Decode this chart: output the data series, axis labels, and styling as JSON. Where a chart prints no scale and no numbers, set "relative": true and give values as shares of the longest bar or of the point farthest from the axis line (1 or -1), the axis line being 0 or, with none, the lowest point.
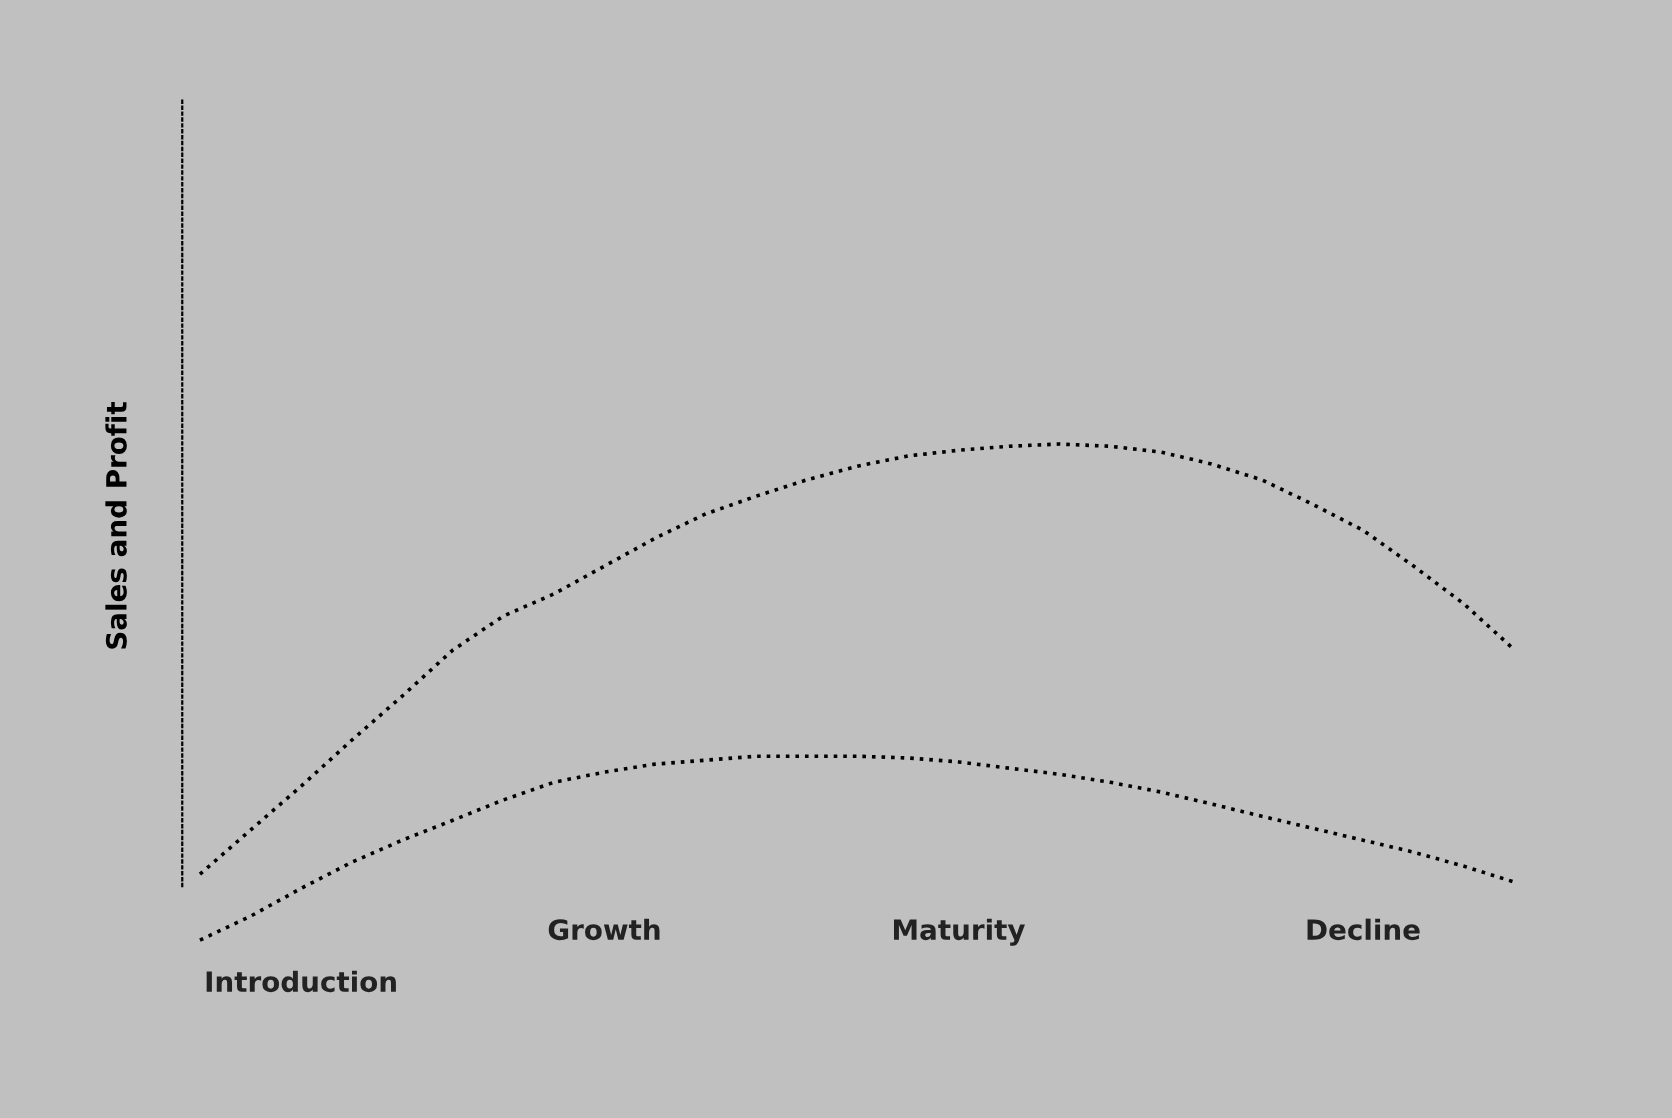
{
  "chart_data": {
    "type": "line",
    "relative": true,
    "ylabel": "Sales and Profit",
    "categories": [
      null,
      null,
      "Introduction",
      null,
      null,
      null,
      null,
      null,
      "Growth",
      null,
      null,
      null,
      null,
      null,
      null,
      "Maturity",
      null,
      null,
      null,
      null,
      null,
      null,
      null,
      "Decline",
      null,
      null,
      null
    ],
    "series": [
      {
        "color": "#000000",
        "values": [
          0.027,
          0.127,
          0.226,
          0.33,
          0.43,
          0.534,
          0.611,
          0.661,
          0.724,
          0.787,
          0.842,
          0.882,
          0.919,
          0.95,
          0.973,
          0.986,
          0.995,
          1.0,
          0.995,
          0.982,
          0.955,
          0.919,
          0.864,
          0.805,
          0.724,
          0.638,
          0.534
        ]
      },
      {
        "color": "#000000",
        "values": [
          -0.122,
          -0.068,
          -0.005,
          0.054,
          0.104,
          0.149,
          0.195,
          0.235,
          0.258,
          0.276,
          0.285,
          0.294,
          0.294,
          0.294,
          0.29,
          0.281,
          0.267,
          0.253,
          0.235,
          0.213,
          0.186,
          0.158,
          0.131,
          0.104,
          0.077,
          0.045,
          0.009
        ]
      }
    ],
    "line_style": "dotted",
    "grid": false,
    "legend": false
  }
}
